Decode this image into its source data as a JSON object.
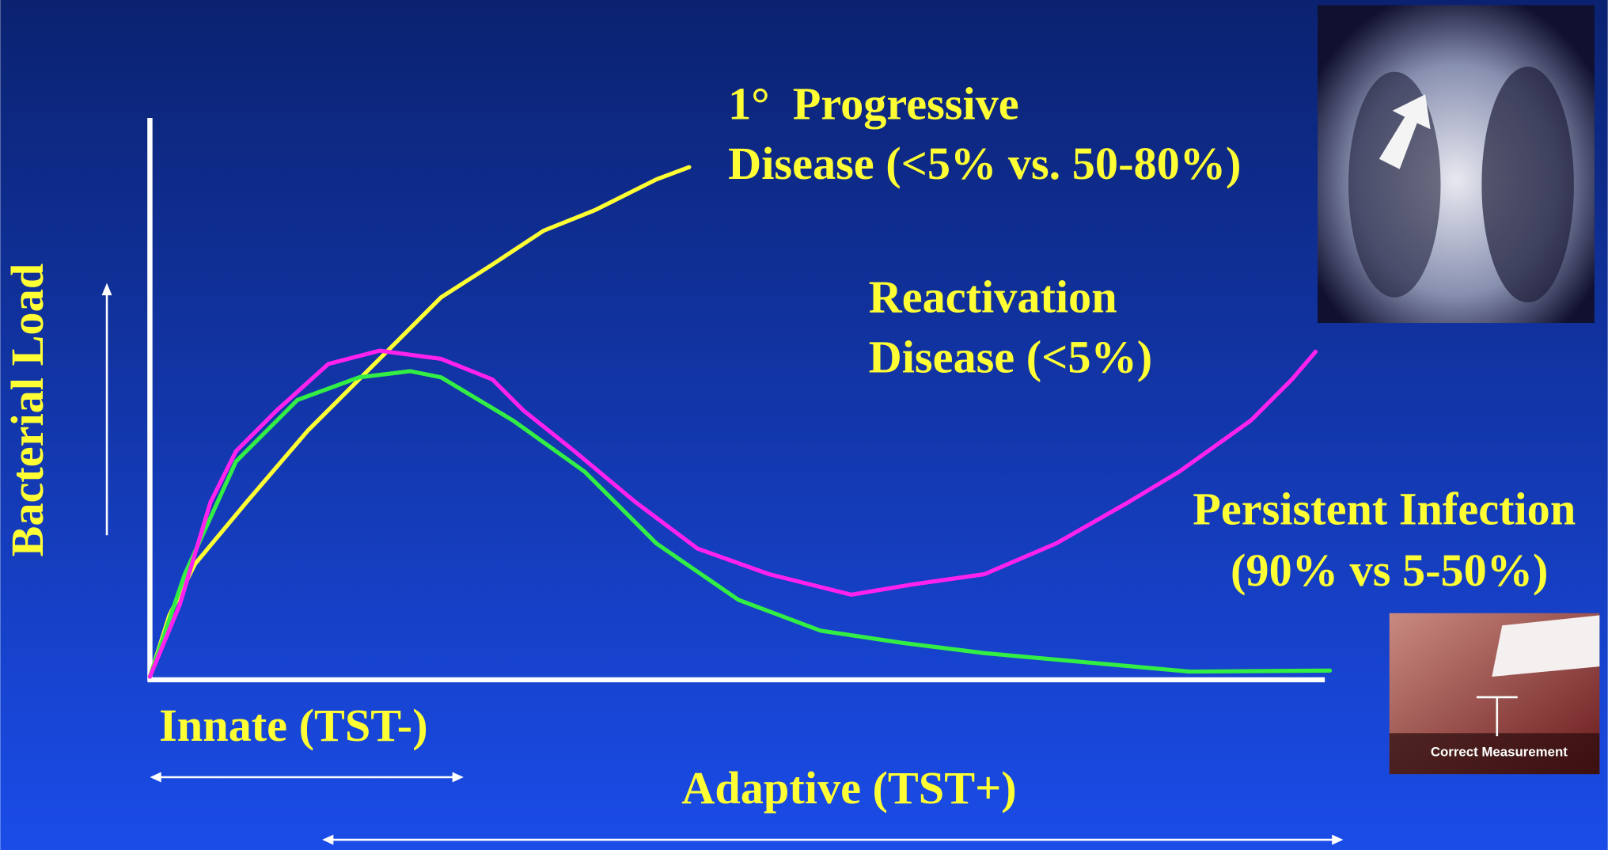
{
  "y_axis_label": "Bacterial Load",
  "annotations": {
    "progressive": [
      "1°  Progressive",
      "Disease (<5% vs. 50-80%)"
    ],
    "reactivation": [
      "Reactivation",
      "Disease (<5%)"
    ],
    "persistent": [
      "Persistent Infection",
      "(90% vs 5-50%)"
    ]
  },
  "phases": {
    "innate": "Innate (TST-)",
    "adaptive": "Adaptive (TST+)"
  },
  "photo_caption": "Correct Measurement"
}
